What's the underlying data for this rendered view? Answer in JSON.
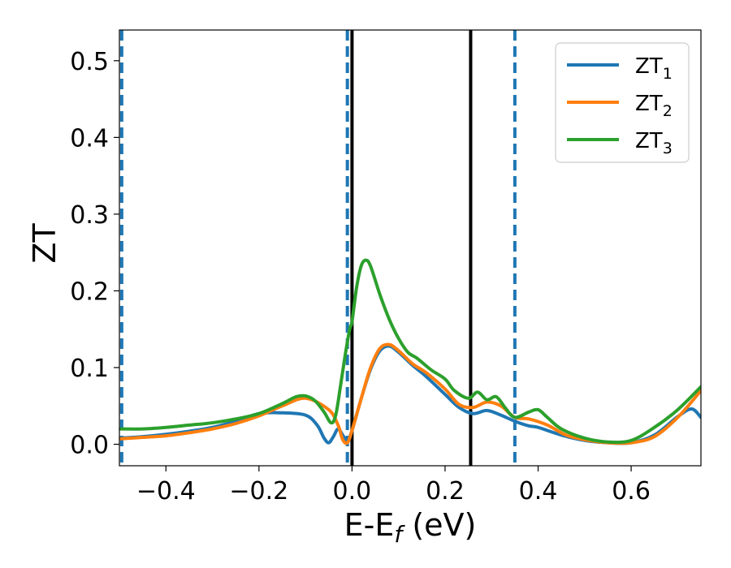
{
  "chart_data": {
    "type": "line",
    "xlabel_main": "E-E",
    "xlabel_sub": "f",
    "xlabel_unit": " (eV)",
    "ylabel": "ZT",
    "xlim": [
      -0.5,
      0.75
    ],
    "ylim": [
      -0.028,
      0.54
    ],
    "xticks": [
      -0.4,
      -0.2,
      0.0,
      0.2,
      0.4,
      0.6
    ],
    "xtick_labels": [
      "−0.4",
      "−0.2",
      "0.0",
      "0.2",
      "0.4",
      "0.6"
    ],
    "yticks": [
      0.0,
      0.1,
      0.2,
      0.3,
      0.4,
      0.5
    ],
    "ytick_labels": [
      "0.0",
      "0.1",
      "0.2",
      "0.3",
      "0.4",
      "0.5"
    ],
    "legend_position": "top-right",
    "vlines_solid": [
      0.0,
      0.255
    ],
    "vlines_dashed": [
      -0.495,
      -0.01,
      0.35
    ],
    "vline_solid_color": "#000000",
    "vline_dashed_color": "#1f77b4",
    "series": [
      {
        "name_main": "ZT",
        "name_sub": "1",
        "color": "#1f77b4",
        "x": [
          -0.5,
          -0.45,
          -0.4,
          -0.35,
          -0.3,
          -0.25,
          -0.2,
          -0.15,
          -0.1,
          -0.075,
          -0.06,
          -0.05,
          -0.04,
          -0.03,
          -0.02,
          -0.01,
          0.0,
          0.02,
          0.04,
          0.06,
          0.08,
          0.1,
          0.13,
          0.16,
          0.2,
          0.23,
          0.26,
          0.29,
          0.32,
          0.35,
          0.38,
          0.4,
          0.45,
          0.5,
          0.55,
          0.6,
          0.65,
          0.7,
          0.73,
          0.75
        ],
        "y": [
          0.008,
          0.01,
          0.013,
          0.017,
          0.022,
          0.03,
          0.04,
          0.041,
          0.038,
          0.025,
          0.008,
          0.002,
          0.01,
          0.02,
          0.012,
          0.004,
          0.018,
          0.06,
          0.098,
          0.122,
          0.128,
          0.12,
          0.103,
          0.088,
          0.065,
          0.048,
          0.04,
          0.044,
          0.038,
          0.03,
          0.024,
          0.022,
          0.012,
          0.005,
          0.002,
          0.002,
          0.012,
          0.036,
          0.046,
          0.035
        ]
      },
      {
        "name_main": "ZT",
        "name_sub": "2",
        "color": "#ff7f0e",
        "x": [
          -0.5,
          -0.45,
          -0.4,
          -0.35,
          -0.3,
          -0.25,
          -0.2,
          -0.15,
          -0.1,
          -0.05,
          -0.03,
          -0.02,
          -0.01,
          0.0,
          0.02,
          0.04,
          0.06,
          0.08,
          0.1,
          0.13,
          0.16,
          0.2,
          0.23,
          0.26,
          0.29,
          0.32,
          0.35,
          0.38,
          0.42,
          0.46,
          0.5,
          0.55,
          0.6,
          0.65,
          0.7,
          0.75
        ],
        "y": [
          0.007,
          0.009,
          0.011,
          0.015,
          0.02,
          0.027,
          0.037,
          0.05,
          0.06,
          0.045,
          0.025,
          0.006,
          0.002,
          0.018,
          0.06,
          0.1,
          0.125,
          0.13,
          0.122,
          0.105,
          0.093,
          0.072,
          0.052,
          0.048,
          0.055,
          0.05,
          0.035,
          0.033,
          0.025,
          0.012,
          0.006,
          0.002,
          0.002,
          0.01,
          0.035,
          0.07
        ]
      },
      {
        "name_main": "ZT",
        "name_sub": "3",
        "color": "#2ca02c",
        "x": [
          -0.5,
          -0.45,
          -0.4,
          -0.35,
          -0.3,
          -0.25,
          -0.2,
          -0.15,
          -0.12,
          -0.1,
          -0.08,
          -0.06,
          -0.045,
          -0.035,
          -0.025,
          -0.015,
          -0.005,
          0.0,
          0.01,
          0.02,
          0.03,
          0.04,
          0.06,
          0.08,
          0.1,
          0.12,
          0.14,
          0.17,
          0.2,
          0.22,
          0.25,
          0.27,
          0.29,
          0.31,
          0.33,
          0.35,
          0.38,
          0.4,
          0.42,
          0.45,
          0.5,
          0.55,
          0.6,
          0.65,
          0.7,
          0.75
        ],
        "y": [
          0.02,
          0.02,
          0.022,
          0.025,
          0.028,
          0.033,
          0.04,
          0.053,
          0.062,
          0.063,
          0.057,
          0.042,
          0.028,
          0.038,
          0.075,
          0.115,
          0.15,
          0.16,
          0.205,
          0.233,
          0.24,
          0.232,
          0.195,
          0.163,
          0.138,
          0.12,
          0.112,
          0.097,
          0.085,
          0.07,
          0.06,
          0.068,
          0.058,
          0.062,
          0.047,
          0.035,
          0.042,
          0.045,
          0.035,
          0.02,
          0.008,
          0.003,
          0.005,
          0.022,
          0.045,
          0.075
        ]
      }
    ]
  }
}
